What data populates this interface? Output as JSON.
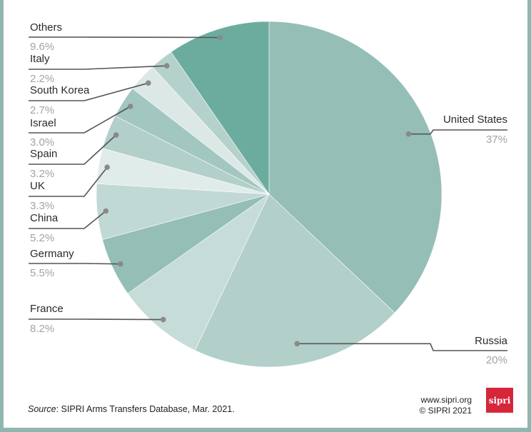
{
  "chart_data": {
    "type": "pie",
    "unit": "%",
    "slices": [
      {
        "label": "United States",
        "value": 37,
        "display": "37%",
        "color": "#95beb6"
      },
      {
        "label": "Russia",
        "value": 20,
        "display": "20%",
        "color": "#b2cfca"
      },
      {
        "label": "France",
        "value": 8.2,
        "display": "8.2%",
        "color": "#c5dcd8"
      },
      {
        "label": "Germany",
        "value": 5.5,
        "display": "5.5%",
        "color": "#95beb6"
      },
      {
        "label": "China",
        "value": 5.2,
        "display": "5.2%",
        "color": "#c1d9d5"
      },
      {
        "label": "UK",
        "value": 3.3,
        "display": "3.3%",
        "color": "#e0ecea"
      },
      {
        "label": "Spain",
        "value": 3.2,
        "display": "3.2%",
        "color": "#b2cfca"
      },
      {
        "label": "Israel",
        "value": 3.0,
        "display": "3.0%",
        "color": "#a2c7c0"
      },
      {
        "label": "South Korea",
        "value": 2.7,
        "display": "2.7%",
        "color": "#dbe8e6"
      },
      {
        "label": "Italy",
        "value": 2.2,
        "display": "2.2%",
        "color": "#b5d1cc"
      },
      {
        "label": "Others",
        "value": 9.6,
        "display": "9.6%",
        "color": "#6cac9f"
      }
    ]
  },
  "footer": {
    "source_prefix": "Source",
    "source_text": ": SIPRI Arms Transfers Database, Mar. 2021.",
    "website": "www.sipri.org",
    "copyright": "© SIPRI 2021",
    "logo_text": "sipri"
  }
}
